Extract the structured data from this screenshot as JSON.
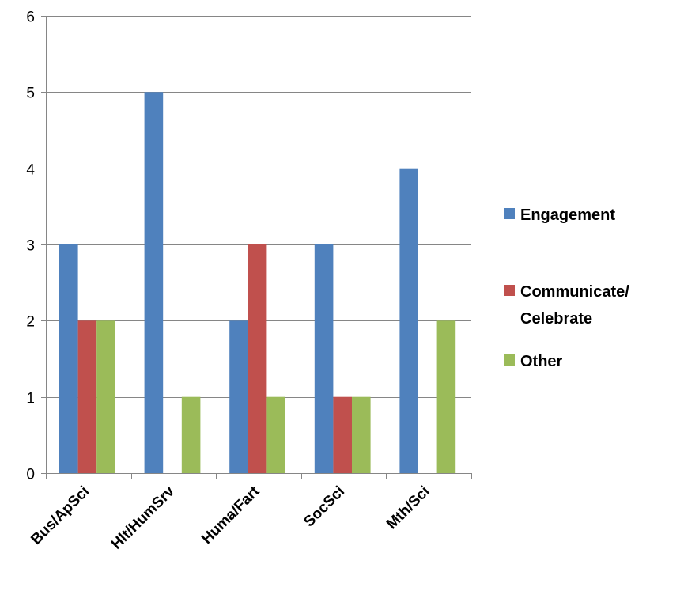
{
  "chart_data": {
    "type": "bar",
    "categories": [
      "Bus/ApSci",
      "Hlt/HumSrv",
      "Huma/Fart",
      "SocSci",
      "Mth/Sci"
    ],
    "series": [
      {
        "name": "Engagement",
        "values": [
          3,
          5,
          2,
          3,
          4
        ],
        "color": "#4F81BD"
      },
      {
        "name": "Communicate/ Celebrate",
        "legend_lines": [
          "Communicate/",
          "Celebrate"
        ],
        "values": [
          2,
          0,
          3,
          1,
          0
        ],
        "color": "#C0504D"
      },
      {
        "name": "Other",
        "values": [
          2,
          1,
          1,
          1,
          2
        ],
        "color": "#9BBB59"
      }
    ],
    "title": "",
    "xlabel": "",
    "ylabel": "",
    "ylim": [
      0,
      6
    ],
    "yticks": [
      "0",
      "1",
      "2",
      "3",
      "4",
      "5",
      "6"
    ],
    "grid": true,
    "legend_position": "right",
    "gridline_color": "#868686",
    "axis_color": "#868686"
  }
}
